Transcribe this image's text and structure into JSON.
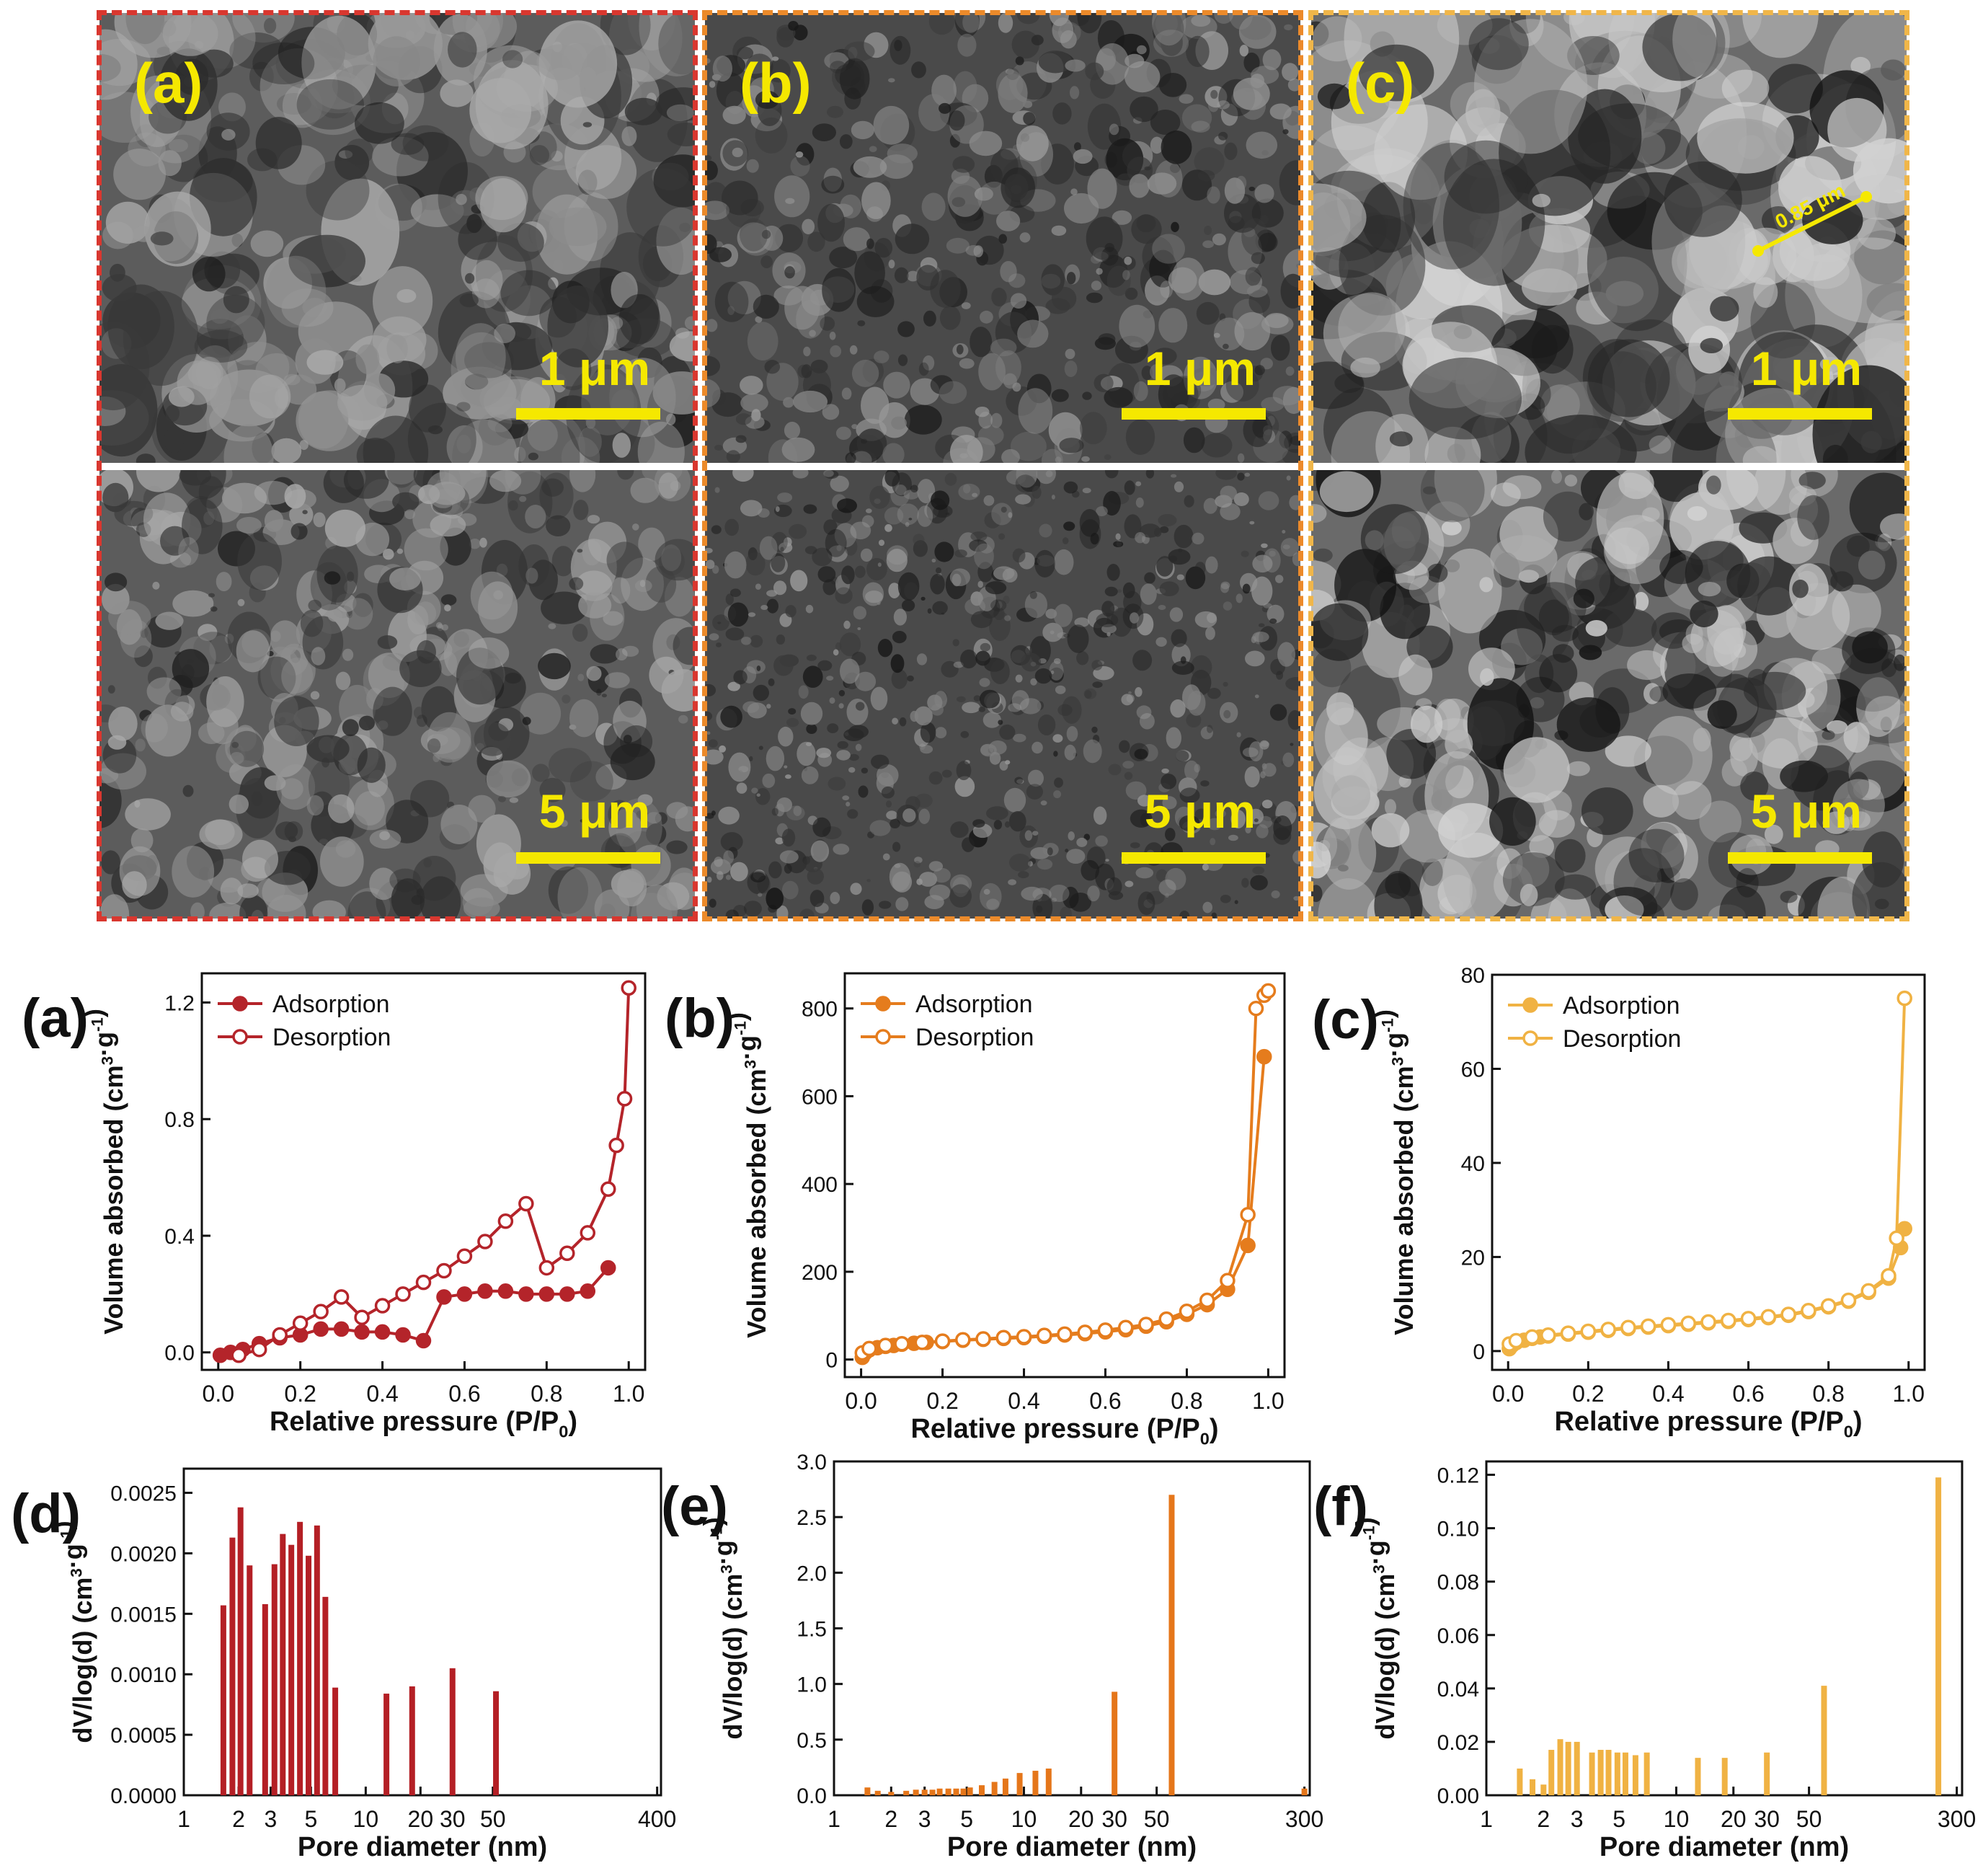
{
  "sem": {
    "label_color": "#f5e800",
    "panels": [
      {
        "label": "(a)",
        "frame_color": "#d9372f",
        "top_scale": "1 μm",
        "bottom_scale": "5 μm",
        "annotation": ""
      },
      {
        "label": "(b)",
        "frame_color": "#ec8a2a",
        "top_scale": "1 μm",
        "bottom_scale": "5 μm",
        "annotation": ""
      },
      {
        "label": "(c)",
        "frame_color": "#f0b649",
        "top_scale": "1 μm",
        "bottom_scale": "5 μm",
        "annotation": "0.85 μm"
      }
    ]
  },
  "chart_data": [
    {
      "type": "line",
      "panel_label": "(a)",
      "xlabel": "Relative pressure (P/P0)",
      "ylabel": "Volume absorbed (cm3·g-1)",
      "xlim": [
        -0.04,
        1.04
      ],
      "ylim": [
        -0.06,
        1.3
      ],
      "xticks": [
        0.0,
        0.2,
        0.4,
        0.6,
        0.8,
        1.0
      ],
      "xtick_labels": [
        "0.0",
        "0.2",
        "0.4",
        "0.6",
        "0.8",
        "1.0"
      ],
      "yticks": [
        0.0,
        0.4,
        0.8,
        1.2
      ],
      "ytick_labels": [
        "0.0",
        "0.4",
        "0.8",
        "1.2"
      ],
      "color": "#b4242a",
      "legend": "top-left",
      "series": [
        {
          "name": "Adsorption",
          "marker": "filled",
          "x": [
            0.005,
            0.03,
            0.06,
            0.1,
            0.15,
            0.2,
            0.25,
            0.3,
            0.35,
            0.4,
            0.45,
            0.5,
            0.55,
            0.6,
            0.65,
            0.7,
            0.75,
            0.8,
            0.85,
            0.9,
            0.95
          ],
          "y": [
            -0.01,
            0.0,
            0.01,
            0.03,
            0.05,
            0.06,
            0.08,
            0.08,
            0.07,
            0.07,
            0.06,
            0.04,
            0.19,
            0.2,
            0.21,
            0.21,
            0.2,
            0.2,
            0.2,
            0.21,
            0.29
          ]
        },
        {
          "name": "Desorption",
          "marker": "open",
          "x": [
            0.05,
            0.1,
            0.15,
            0.2,
            0.25,
            0.3,
            0.35,
            0.4,
            0.45,
            0.5,
            0.55,
            0.6,
            0.65,
            0.7,
            0.75,
            0.8,
            0.85,
            0.9,
            0.95,
            0.97,
            0.99,
            1.0
          ],
          "y": [
            -0.01,
            0.01,
            0.06,
            0.1,
            0.14,
            0.19,
            0.12,
            0.16,
            0.2,
            0.24,
            0.28,
            0.33,
            0.38,
            0.45,
            0.51,
            0.29,
            0.34,
            0.41,
            0.56,
            0.71,
            0.87,
            1.25
          ]
        }
      ]
    },
    {
      "type": "line",
      "panel_label": "(b)",
      "xlabel": "Relative pressure (P/P0)",
      "ylabel": "Volume absorbed (cm3·g-1)",
      "xlim": [
        -0.04,
        1.04
      ],
      "ylim": [
        -40,
        880
      ],
      "xticks": [
        0.0,
        0.2,
        0.4,
        0.6,
        0.8,
        1.0
      ],
      "xtick_labels": [
        "0.0",
        "0.2",
        "0.4",
        "0.6",
        "0.8",
        "1.0"
      ],
      "yticks": [
        0,
        200,
        400,
        600,
        800
      ],
      "ytick_labels": [
        "0",
        "200",
        "400",
        "600",
        "800"
      ],
      "color": "#e57c1d",
      "legend": "top-left",
      "series": [
        {
          "name": "Adsorption",
          "marker": "filled",
          "x": [
            0.003,
            0.01,
            0.02,
            0.04,
            0.06,
            0.08,
            0.1,
            0.13,
            0.16,
            0.2,
            0.25,
            0.3,
            0.35,
            0.4,
            0.45,
            0.5,
            0.55,
            0.6,
            0.65,
            0.7,
            0.75,
            0.8,
            0.85,
            0.9,
            0.95,
            0.99
          ],
          "y": [
            5,
            15,
            22,
            27,
            30,
            32,
            35,
            37,
            39,
            41,
            44,
            46,
            48,
            50,
            53,
            56,
            59,
            63,
            68,
            76,
            86,
            103,
            125,
            160,
            260,
            690
          ]
        },
        {
          "name": "Desorption",
          "marker": "open",
          "x": [
            0.003,
            0.02,
            0.06,
            0.1,
            0.15,
            0.2,
            0.25,
            0.3,
            0.35,
            0.4,
            0.45,
            0.5,
            0.55,
            0.6,
            0.65,
            0.7,
            0.75,
            0.8,
            0.85,
            0.9,
            0.95,
            0.97,
            0.99,
            1.0
          ],
          "y": [
            15,
            25,
            32,
            36,
            39,
            42,
            45,
            47,
            50,
            52,
            55,
            58,
            62,
            67,
            73,
            80,
            92,
            110,
            135,
            180,
            330,
            800,
            830,
            840
          ]
        }
      ]
    },
    {
      "type": "line",
      "panel_label": "(c)",
      "xlabel": "Relative pressure (P/P0)",
      "ylabel": "Volume absorbed (cm3·g-1)",
      "xlim": [
        -0.04,
        1.04
      ],
      "ylim": [
        -4,
        80
      ],
      "xticks": [
        0.0,
        0.2,
        0.4,
        0.6,
        0.8,
        1.0
      ],
      "xtick_labels": [
        "0.0",
        "0.2",
        "0.4",
        "0.6",
        "0.8",
        "1.0"
      ],
      "yticks": [
        0,
        20,
        40,
        60,
        80
      ],
      "ytick_labels": [
        "0",
        "20",
        "40",
        "60",
        "80"
      ],
      "color": "#f0b243",
      "legend": "top-left",
      "series": [
        {
          "name": "Adsorption",
          "marker": "filled",
          "x": [
            0.003,
            0.01,
            0.02,
            0.04,
            0.06,
            0.08,
            0.1,
            0.15,
            0.2,
            0.25,
            0.3,
            0.35,
            0.4,
            0.45,
            0.5,
            0.55,
            0.6,
            0.65,
            0.7,
            0.75,
            0.8,
            0.85,
            0.9,
            0.95,
            0.98,
            0.99
          ],
          "y": [
            0.5,
            1.2,
            1.8,
            2.3,
            2.7,
            3.0,
            3.2,
            3.6,
            4.0,
            4.4,
            4.8,
            5.1,
            5.4,
            5.7,
            6.0,
            6.3,
            6.7,
            7.1,
            7.6,
            8.4,
            9.4,
            10.6,
            12.5,
            15.5,
            22.0,
            26.0
          ]
        },
        {
          "name": "Desorption",
          "marker": "open",
          "x": [
            0.003,
            0.02,
            0.06,
            0.1,
            0.15,
            0.2,
            0.25,
            0.3,
            0.35,
            0.4,
            0.45,
            0.5,
            0.55,
            0.6,
            0.65,
            0.7,
            0.75,
            0.8,
            0.85,
            0.9,
            0.95,
            0.97,
            0.99
          ],
          "y": [
            1.5,
            2.2,
            3.0,
            3.4,
            3.8,
            4.2,
            4.6,
            5.0,
            5.3,
            5.6,
            5.9,
            6.2,
            6.5,
            6.9,
            7.3,
            7.8,
            8.6,
            9.6,
            10.8,
            12.8,
            16.0,
            24.0,
            75.0
          ]
        }
      ]
    },
    {
      "type": "bar",
      "panel_label": "(d)",
      "xlabel": "Pore diameter (nm)",
      "ylabel": "dV/log(d) (cm3·g-1)",
      "xscale": "log",
      "xlim": [
        1,
        420
      ],
      "ylim": [
        0,
        0.0027
      ],
      "xticks": [
        1,
        2,
        3,
        5,
        10,
        20,
        30,
        50,
        400
      ],
      "xtick_labels": [
        "1",
        "2",
        "3",
        "5",
        "10",
        "20",
        "30",
        "50",
        "400"
      ],
      "yticks": [
        0.0,
        0.0005,
        0.001,
        0.0015,
        0.002,
        0.0025
      ],
      "ytick_labels": [
        "0.0000",
        "0.0005",
        "0.0010",
        "0.0015",
        "0.0020",
        "0.0025"
      ],
      "color": "#b41f25",
      "x": [
        1.65,
        1.85,
        2.05,
        2.3,
        2.8,
        3.15,
        3.5,
        3.9,
        4.35,
        4.85,
        5.4,
        6.0,
        6.8,
        13,
        18,
        30,
        52,
        390
      ],
      "values": [
        0.00157,
        0.00213,
        0.00238,
        0.0019,
        0.00158,
        0.00191,
        0.00216,
        0.00207,
        0.00226,
        0.00198,
        0.00223,
        0.00164,
        0.00089,
        0.00084,
        0.0009,
        0.00105,
        0.00086,
        0.0
      ]
    },
    {
      "type": "bar",
      "panel_label": "(e)",
      "xlabel": "Pore diameter (nm)",
      "ylabel": "dV/log(d) (cm3·g-1)",
      "xscale": "log",
      "xlim": [
        1,
        320
      ],
      "ylim": [
        0,
        3.0
      ],
      "xticks": [
        1,
        2,
        3,
        5,
        10,
        20,
        30,
        50,
        300
      ],
      "xtick_labels": [
        "1",
        "2",
        "3",
        "5",
        "10",
        "20",
        "30",
        "50",
        "300"
      ],
      "yticks": [
        0.0,
        0.5,
        1.0,
        1.5,
        2.0,
        2.5,
        3.0
      ],
      "ytick_labels": [
        "0.0",
        "0.5",
        "1.0",
        "1.5",
        "2.0",
        "2.5",
        "3.0"
      ],
      "color": "#e5761a",
      "x": [
        1.5,
        1.7,
        2.0,
        2.4,
        2.7,
        3.0,
        3.3,
        3.6,
        4.0,
        4.4,
        4.8,
        5.2,
        6.0,
        7.0,
        8.0,
        9.5,
        11.5,
        13.5,
        30,
        60,
        300
      ],
      "values": [
        0.07,
        0.04,
        0.03,
        0.04,
        0.05,
        0.05,
        0.05,
        0.06,
        0.06,
        0.06,
        0.06,
        0.07,
        0.09,
        0.12,
        0.15,
        0.2,
        0.22,
        0.24,
        0.93,
        2.7,
        0.06
      ]
    },
    {
      "type": "bar",
      "panel_label": "(f)",
      "xlabel": "Pore diameter (nm)",
      "ylabel": "dV/log(d) (cm3·g-1)",
      "xscale": "log",
      "xlim": [
        1,
        320
      ],
      "ylim": [
        0,
        0.125
      ],
      "xticks": [
        1,
        2,
        3,
        5,
        10,
        20,
        30,
        50,
        300
      ],
      "xtick_labels": [
        "1",
        "2",
        "3",
        "5",
        "10",
        "20",
        "30",
        "50",
        "300"
      ],
      "yticks": [
        0.0,
        0.02,
        0.04,
        0.06,
        0.08,
        0.1,
        0.12
      ],
      "ytick_labels": [
        "0.00",
        "0.02",
        "0.04",
        "0.06",
        "0.08",
        "0.10",
        "0.12"
      ],
      "color": "#f0b243",
      "x": [
        1.5,
        1.75,
        2.0,
        2.2,
        2.45,
        2.7,
        3.0,
        3.6,
        4.0,
        4.4,
        4.9,
        5.4,
        6.1,
        7.0,
        13,
        18,
        30,
        60,
        240
      ],
      "values": [
        0.01,
        0.006,
        0.004,
        0.017,
        0.021,
        0.02,
        0.02,
        0.016,
        0.017,
        0.017,
        0.016,
        0.016,
        0.015,
        0.016,
        0.014,
        0.014,
        0.016,
        0.041,
        0.119
      ]
    }
  ]
}
